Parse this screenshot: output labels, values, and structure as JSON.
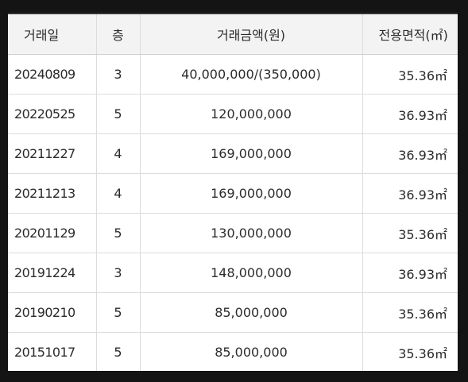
{
  "table": {
    "headers": {
      "date": "거래일",
      "floor": "층",
      "price": "거래금액(원)",
      "area": "전용면적(㎡)"
    },
    "rows": [
      {
        "date": "20240809",
        "floor": "3",
        "price": "40,000,000/(350,000)",
        "area": "35.36㎡"
      },
      {
        "date": "20220525",
        "floor": "5",
        "price": "120,000,000",
        "area": "36.93㎡"
      },
      {
        "date": "20211227",
        "floor": "4",
        "price": "169,000,000",
        "area": "36.93㎡"
      },
      {
        "date": "20211213",
        "floor": "4",
        "price": "169,000,000",
        "area": "36.93㎡"
      },
      {
        "date": "20201129",
        "floor": "5",
        "price": "130,000,000",
        "area": "35.36㎡"
      },
      {
        "date": "20191224",
        "floor": "3",
        "price": "148,000,000",
        "area": "36.93㎡"
      },
      {
        "date": "20190210",
        "floor": "5",
        "price": "85,000,000",
        "area": "35.36㎡"
      },
      {
        "date": "20151017",
        "floor": "5",
        "price": "85,000,000",
        "area": "35.36㎡"
      }
    ]
  }
}
